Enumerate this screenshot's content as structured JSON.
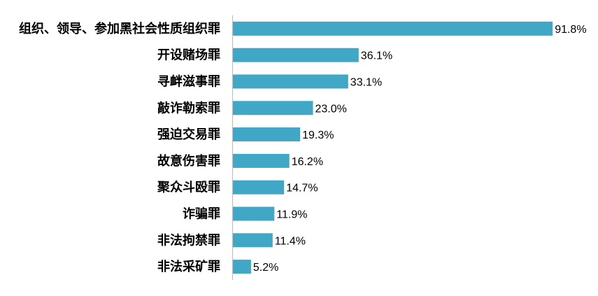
{
  "chart_data": {
    "type": "bar",
    "orientation": "horizontal",
    "categories": [
      "组织、领导、参加黑社会性质组织罪",
      "开设赌场罪",
      "寻衅滋事罪",
      "敲诈勒索罪",
      "强迫交易罪",
      "故意伤害罪",
      "聚众斗殴罪",
      "诈骗罪",
      "非法拘禁罪",
      "非法采矿罪"
    ],
    "values": [
      91.8,
      36.1,
      33.1,
      23.0,
      19.3,
      16.2,
      14.7,
      11.9,
      11.4,
      5.2
    ],
    "value_labels": [
      "91.8%",
      "36.1%",
      "33.1%",
      "23.0%",
      "19.3%",
      "16.2%",
      "14.7%",
      "11.9%",
      "11.4%",
      "5.2%"
    ],
    "xlim": [
      0,
      100
    ],
    "grid": false,
    "legend": "none",
    "colors": {
      "bar": "#41A7C7",
      "axis": "#BFBFBF",
      "text": "#000000"
    }
  }
}
